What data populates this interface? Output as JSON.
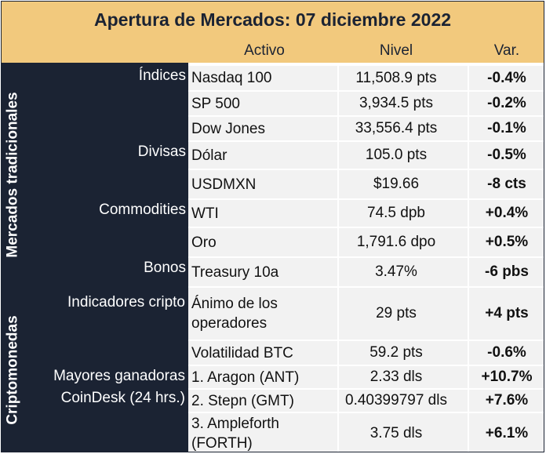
{
  "title": "Apertura de Mercados: 07 diciembre 2022",
  "columns": {
    "activo": "Activo",
    "nivel": "Nivel",
    "var": "Var."
  },
  "sections": [
    {
      "label": "Mercados tradicionales",
      "categories": [
        {
          "name": "Índices"
        },
        {
          "name": "Divisas"
        },
        {
          "name": "Commodities"
        },
        {
          "name": "Bonos"
        }
      ]
    },
    {
      "label": "Criptomonedas",
      "categories": [
        {
          "name": "Indicadores cripto"
        },
        {
          "name": "Mayores ganadoras"
        },
        {
          "name": "CoinDesk (24 hrs.)"
        }
      ]
    }
  ],
  "rows": [
    {
      "activo": "Nasdaq 100",
      "nivel": "11,508.9 pts",
      "var": "-0.4%"
    },
    {
      "activo": "SP 500",
      "nivel": "3,934.5 pts",
      "var": "-0.2%"
    },
    {
      "activo": "Dow Jones",
      "nivel": "33,556.4 pts",
      "var": "-0.1%"
    },
    {
      "activo": "Dólar",
      "nivel": "105.0 pts",
      "var": "-0.5%"
    },
    {
      "activo": "USDMXN",
      "nivel": "$19.66",
      "var": "-8 cts"
    },
    {
      "activo": "WTI",
      "nivel": "74.5 dpb",
      "var": "+0.4%"
    },
    {
      "activo": "Oro",
      "nivel": "1,791.6 dpo",
      "var": "+0.5%"
    },
    {
      "activo": "Treasury 10a",
      "nivel": "3.47%",
      "var": "-6 pbs"
    },
    {
      "activo": "Ánimo de los operadores",
      "nivel": "29 pts",
      "var": "+4 pts"
    },
    {
      "activo": "Volatilidad BTC",
      "nivel": "59.2 pts",
      "var": "-0.6%"
    },
    {
      "activo": "1. Aragon (ANT)",
      "nivel": "2.33 dls",
      "var": "+10.7%"
    },
    {
      "activo": "2. Stepn (GMT)",
      "nivel": "0.40399797 dls",
      "var": "+7.6%"
    },
    {
      "activo": "3. Ampleforth (FORTH)",
      "nivel": "3.75 dls",
      "var": "+6.1%"
    }
  ]
}
